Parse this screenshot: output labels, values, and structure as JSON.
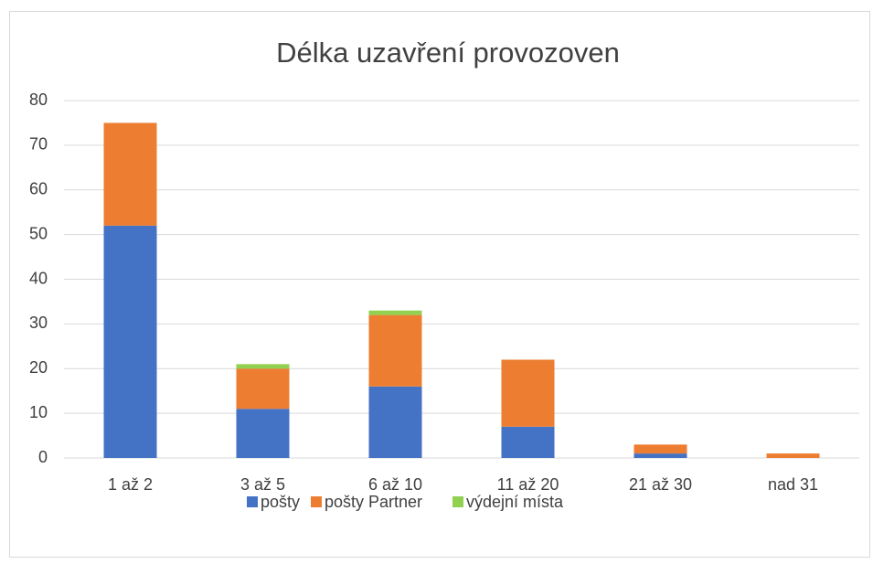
{
  "chart_data": {
    "type": "stacked_bar",
    "title": "Délka uzavření provozoven",
    "categories": [
      "1 až 2",
      "3 až 5",
      "6 až 10",
      "11 až 20",
      "21 až 30",
      "nad 31"
    ],
    "series": [
      {
        "name": "pošty",
        "color": "#4472c4",
        "values": [
          52,
          11,
          16,
          7,
          1,
          0
        ]
      },
      {
        "name": "pošty Partner",
        "color": "#ed7d31",
        "values": [
          23,
          9,
          16,
          15,
          2,
          1
        ]
      },
      {
        "name": "výdejní místa",
        "color": "#92d050",
        "values": [
          0,
          1,
          1,
          0,
          0,
          0
        ]
      }
    ],
    "ylim": [
      0,
      80
    ],
    "yticks": [
      0,
      10,
      20,
      30,
      40,
      50,
      60,
      70,
      80
    ],
    "grid": true,
    "legend": "bottom"
  }
}
